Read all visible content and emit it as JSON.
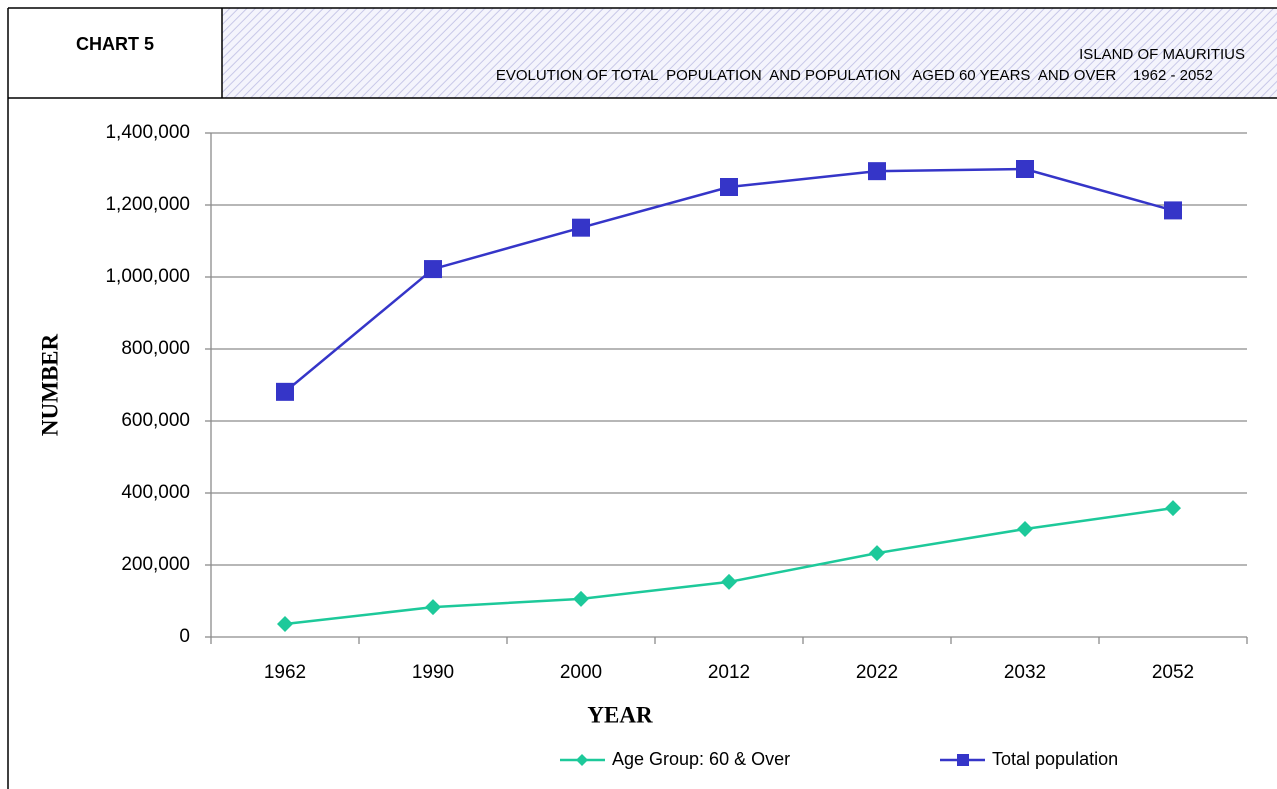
{
  "chart_data": {
    "type": "line",
    "label": "CHART 5",
    "title": "ISLAND OF MAURITIUS",
    "subtitle": "EVOLUTION OF TOTAL  POPULATION  AND POPULATION   AGED 60 YEARS  AND OVER    1962 - 2052",
    "xlabel": "YEAR",
    "ylabel": "NUMBER",
    "categories": [
      "1962",
      "1990",
      "2000",
      "2012",
      "2022",
      "2032",
      "2052"
    ],
    "series": [
      {
        "name": "Age Group: 60 & Over",
        "color": "#1dc99a",
        "marker": "diamond",
        "values": [
          36000,
          83000,
          106000,
          153000,
          233000,
          300000,
          358000
        ]
      },
      {
        "name": "Total population",
        "color": "#3535c8",
        "marker": "square",
        "values": [
          681000,
          1022000,
          1137000,
          1250000,
          1294000,
          1300000,
          1185000
        ]
      }
    ],
    "ylim": [
      0,
      1400000
    ],
    "yticks": [
      0,
      {
        "value": 200000,
        "label": "200,000"
      },
      {
        "value": 400000,
        "label": "400,000"
      },
      {
        "value": 600000,
        "label": "600,000"
      },
      {
        "value": 800000,
        "label": "800,000"
      },
      {
        "value": 1000000,
        "label": "1,000,000"
      },
      {
        "value": 1200000,
        "label": "1,200,000"
      },
      {
        "value": 1400000,
        "label": "1,400,000"
      }
    ],
    "grid": true,
    "legend": "bottom"
  }
}
